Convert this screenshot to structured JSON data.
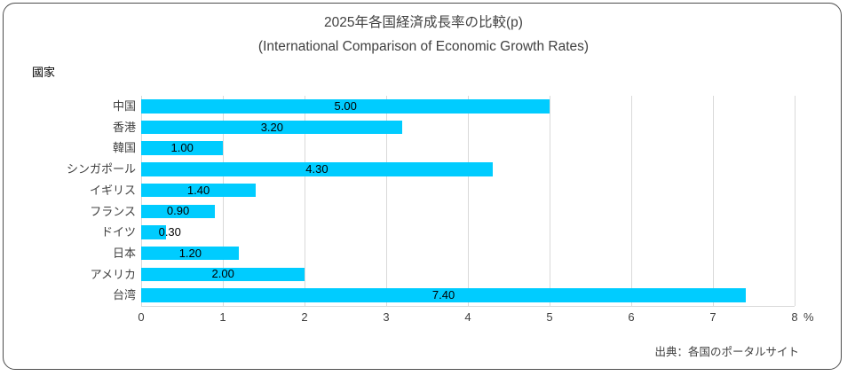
{
  "chart_data": {
    "type": "bar",
    "orientation": "horizontal",
    "title": "2025年各国経済成長率の比較(p)",
    "subtitle": "(International Comparison of Economic Growth Rates)",
    "category_axis_title": "國家",
    "categories": [
      "中国",
      "香港",
      "韓国",
      "シンガポール",
      "イギリス",
      "フランス",
      "ドイツ",
      "日本",
      "アメリカ",
      "台湾"
    ],
    "values": [
      5.0,
      3.2,
      1.0,
      4.3,
      1.4,
      0.9,
      0.3,
      1.2,
      2.0,
      7.4
    ],
    "value_labels": [
      "5.00",
      "3.20",
      "1.00",
      "4.30",
      "1.40",
      "0.90",
      "0.30",
      "1.20",
      "2.00",
      "7.40"
    ],
    "xlim": [
      0,
      8
    ],
    "x_tick_labels": [
      "0",
      "1",
      "2",
      "3",
      "4",
      "5",
      "6",
      "7",
      "8"
    ],
    "x_unit": "%",
    "grid": true,
    "legend": false,
    "bar_color": "#00ccff",
    "gridline_color": "#d9d9d9",
    "source": "出典：各国のポータルサイト"
  }
}
